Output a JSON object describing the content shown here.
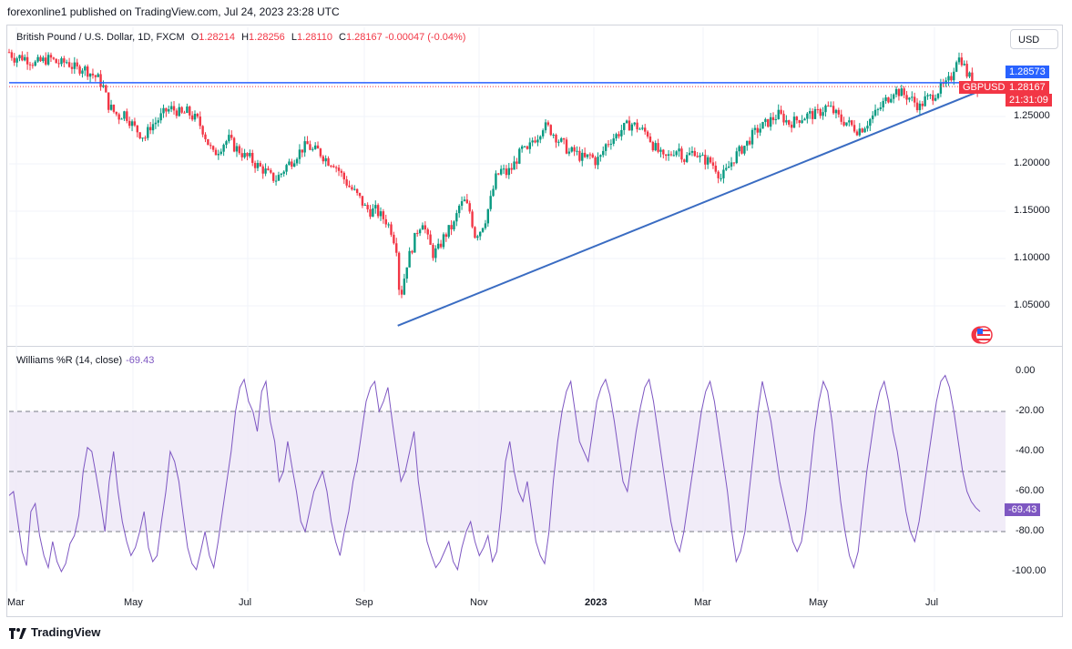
{
  "header": {
    "published": "forexonline1 published on TradingView.com, Jul 24, 2023 23:28 UTC"
  },
  "legend": {
    "symbol": "British Pound / U.S. Dollar, 1D, FXCM",
    "o_label": "O",
    "o": "1.28214",
    "h_label": "H",
    "h": "1.28256",
    "l_label": "L",
    "l": "1.28110",
    "c_label": "C",
    "c": "1.28167",
    "change": "-0.00047 (-0.04%)"
  },
  "currency_button": "USD",
  "price_tags": {
    "line_level": "1.28573",
    "symbol_tag": "GBPUSD",
    "last_price": "1.28167",
    "countdown": "21:31:09"
  },
  "indicator": {
    "name": "Williams %R (14, close)",
    "value": "-69.43",
    "value_tag": "-69.43"
  },
  "footer": {
    "brand": "TradingView"
  },
  "colors": {
    "up": "#089981",
    "down": "#f23645",
    "line": "#2962ff",
    "trend": "#3a6cc2",
    "wr": "#7e57c2",
    "band": "#ede7f6"
  },
  "icons": {
    "flag": "us-flag-icon",
    "logo": "tradingview-logo-icon"
  },
  "chart_data": [
    {
      "type": "candlestick",
      "title": "British Pound / U.S. Dollar, 1D, FXCM",
      "y_ticks": [
        "1.25000",
        "1.20000",
        "1.15000",
        "1.10000",
        "1.05000"
      ],
      "ylim": [
        1.015,
        1.315
      ],
      "x_ticks": [
        "Mar",
        "May",
        "Jul",
        "Sep",
        "Nov",
        "2023",
        "Mar",
        "May",
        "Jul"
      ],
      "close_path": [
        [
          0,
          1.318
        ],
        [
          4,
          1.312
        ],
        [
          8,
          1.313
        ],
        [
          12,
          1.312
        ],
        [
          16,
          1.309
        ],
        [
          20,
          1.306
        ],
        [
          24,
          1.308
        ],
        [
          28,
          1.31
        ],
        [
          32,
          1.311
        ],
        [
          36,
          1.307
        ],
        [
          40,
          1.306
        ],
        [
          44,
          1.308
        ],
        [
          48,
          1.303
        ],
        [
          52,
          1.3
        ],
        [
          56,
          1.302
        ],
        [
          60,
          1.298
        ],
        [
          64,
          1.294
        ],
        [
          68,
          1.29
        ],
        [
          72,
          1.281
        ],
        [
          76,
          1.262
        ],
        [
          80,
          1.255
        ],
        [
          84,
          1.25
        ],
        [
          88,
          1.254
        ],
        [
          92,
          1.246
        ],
        [
          96,
          1.238
        ],
        [
          100,
          1.232
        ],
        [
          104,
          1.228
        ],
        [
          108,
          1.24
        ],
        [
          112,
          1.244
        ],
        [
          116,
          1.25
        ],
        [
          120,
          1.256
        ],
        [
          124,
          1.258
        ],
        [
          128,
          1.256
        ],
        [
          132,
          1.252
        ],
        [
          136,
          1.255
        ],
        [
          140,
          1.25
        ],
        [
          144,
          1.246
        ],
        [
          148,
          1.236
        ],
        [
          152,
          1.222
        ],
        [
          156,
          1.21
        ],
        [
          160,
          1.215
        ],
        [
          164,
          1.222
        ],
        [
          168,
          1.226
        ],
        [
          172,
          1.218
        ],
        [
          176,
          1.214
        ],
        [
          180,
          1.208
        ],
        [
          184,
          1.206
        ],
        [
          188,
          1.2
        ],
        [
          192,
          1.196
        ],
        [
          196,
          1.192
        ],
        [
          200,
          1.186
        ],
        [
          204,
          1.184
        ],
        [
          208,
          1.19
        ],
        [
          212,
          1.198
        ],
        [
          216,
          1.203
        ],
        [
          220,
          1.21
        ],
        [
          224,
          1.216
        ],
        [
          228,
          1.22
        ],
        [
          232,
          1.214
        ],
        [
          236,
          1.214
        ],
        [
          240,
          1.208
        ],
        [
          244,
          1.203
        ],
        [
          248,
          1.201
        ],
        [
          252,
          1.193
        ],
        [
          256,
          1.184
        ],
        [
          260,
          1.176
        ],
        [
          264,
          1.17
        ],
        [
          268,
          1.163
        ],
        [
          272,
          1.154
        ],
        [
          276,
          1.15
        ],
        [
          280,
          1.151
        ],
        [
          284,
          1.145
        ],
        [
          288,
          1.14
        ],
        [
          292,
          1.13
        ],
        [
          296,
          1.112
        ],
        [
          298,
          1.07
        ],
        [
          300,
          1.065
        ],
        [
          302,
          1.08
        ],
        [
          304,
          1.095
        ],
        [
          308,
          1.112
        ],
        [
          312,
          1.13
        ],
        [
          316,
          1.14
        ],
        [
          320,
          1.12
        ],
        [
          324,
          1.105
        ],
        [
          328,
          1.11
        ],
        [
          332,
          1.122
        ],
        [
          336,
          1.13
        ],
        [
          340,
          1.136
        ],
        [
          344,
          1.155
        ],
        [
          348,
          1.16
        ],
        [
          352,
          1.15
        ],
        [
          356,
          1.125
        ],
        [
          360,
          1.13
        ],
        [
          364,
          1.142
        ],
        [
          368,
          1.162
        ],
        [
          372,
          1.185
        ],
        [
          376,
          1.193
        ],
        [
          380,
          1.19
        ],
        [
          384,
          1.195
        ],
        [
          388,
          1.205
        ],
        [
          392,
          1.215
        ],
        [
          396,
          1.212
        ],
        [
          400,
          1.225
        ],
        [
          404,
          1.23
        ],
        [
          408,
          1.24
        ],
        [
          412,
          1.238
        ],
        [
          416,
          1.232
        ],
        [
          420,
          1.225
        ],
        [
          424,
          1.22
        ],
        [
          428,
          1.212
        ],
        [
          432,
          1.213
        ],
        [
          436,
          1.208
        ],
        [
          440,
          1.205
        ],
        [
          444,
          1.209
        ],
        [
          448,
          1.203
        ],
        [
          452,
          1.207
        ],
        [
          456,
          1.22
        ],
        [
          460,
          1.226
        ],
        [
          464,
          1.23
        ],
        [
          468,
          1.236
        ],
        [
          472,
          1.24
        ],
        [
          476,
          1.242
        ],
        [
          480,
          1.239
        ],
        [
          484,
          1.235
        ],
        [
          488,
          1.232
        ],
        [
          492,
          1.22
        ],
        [
          496,
          1.213
        ],
        [
          500,
          1.205
        ],
        [
          504,
          1.208
        ],
        [
          508,
          1.214
        ],
        [
          512,
          1.216
        ],
        [
          516,
          1.205
        ],
        [
          520,
          1.21
        ],
        [
          524,
          1.214
        ],
        [
          528,
          1.206
        ],
        [
          532,
          1.204
        ],
        [
          536,
          1.202
        ],
        [
          540,
          1.196
        ],
        [
          544,
          1.185
        ],
        [
          548,
          1.192
        ],
        [
          552,
          1.202
        ],
        [
          556,
          1.21
        ],
        [
          560,
          1.216
        ],
        [
          564,
          1.222
        ],
        [
          568,
          1.23
        ],
        [
          572,
          1.236
        ],
        [
          576,
          1.24
        ],
        [
          580,
          1.244
        ],
        [
          584,
          1.248
        ],
        [
          588,
          1.252
        ],
        [
          592,
          1.248
        ],
        [
          596,
          1.243
        ],
        [
          600,
          1.245
        ],
        [
          604,
          1.248
        ],
        [
          608,
          1.25
        ],
        [
          612,
          1.252
        ],
        [
          616,
          1.252
        ],
        [
          620,
          1.255
        ],
        [
          624,
          1.26
        ],
        [
          628,
          1.258
        ],
        [
          632,
          1.252
        ],
        [
          636,
          1.246
        ],
        [
          640,
          1.244
        ],
        [
          644,
          1.24
        ],
        [
          648,
          1.236
        ],
        [
          652,
          1.238
        ],
        [
          656,
          1.244
        ],
        [
          660,
          1.25
        ],
        [
          664,
          1.256
        ],
        [
          668,
          1.264
        ],
        [
          672,
          1.27
        ],
        [
          676,
          1.278
        ],
        [
          680,
          1.276
        ],
        [
          684,
          1.273
        ],
        [
          688,
          1.27
        ],
        [
          692,
          1.265
        ],
        [
          696,
          1.26
        ],
        [
          700,
          1.268
        ],
        [
          704,
          1.27
        ],
        [
          708,
          1.275
        ],
        [
          712,
          1.28
        ],
        [
          716,
          1.283
        ],
        [
          720,
          1.292
        ],
        [
          724,
          1.312
        ],
        [
          728,
          1.31
        ],
        [
          732,
          1.295
        ],
        [
          736,
          1.288
        ],
        [
          740,
          1.282
        ]
      ],
      "lines": [
        {
          "name": "horizontal-level",
          "value": 1.2857
        },
        {
          "name": "trendline",
          "from": [
            297,
            1.029
          ],
          "to": [
            742,
            1.277
          ]
        }
      ],
      "last": 1.28167
    },
    {
      "type": "line",
      "title": "Williams %R (14, close)",
      "y_ticks": [
        "0.00",
        "-20.00",
        "-40.00",
        "-60.00",
        "-80.00",
        "-100.00"
      ],
      "ylim": [
        -103,
        3
      ],
      "bands": [
        -20,
        -50,
        -80
      ],
      "last": -69.43,
      "values": [
        -62,
        -60,
        -75,
        -90,
        -97,
        -70,
        -66,
        -82,
        -92,
        -98,
        -85,
        -95,
        -100,
        -96,
        -86,
        -82,
        -72,
        -50,
        -38,
        -40,
        -52,
        -65,
        -80,
        -55,
        -40,
        -60,
        -75,
        -85,
        -92,
        -88,
        -80,
        -70,
        -88,
        -95,
        -92,
        -75,
        -60,
        -40,
        -45,
        -55,
        -72,
        -88,
        -96,
        -99,
        -90,
        -80,
        -92,
        -98,
        -85,
        -70,
        -55,
        -40,
        -20,
        -8,
        -4,
        -15,
        -20,
        -30,
        -10,
        -5,
        -25,
        -35,
        -55,
        -50,
        -35,
        -48,
        -60,
        -75,
        -80,
        -70,
        -60,
        -55,
        -50,
        -60,
        -75,
        -85,
        -92,
        -80,
        -70,
        -55,
        -45,
        -30,
        -15,
        -8,
        -5,
        -20,
        -15,
        -8,
        -25,
        -40,
        -55,
        -50,
        -40,
        -30,
        -55,
        -70,
        -85,
        -92,
        -98,
        -95,
        -90,
        -85,
        -95,
        -99,
        -88,
        -80,
        -75,
        -85,
        -92,
        -88,
        -82,
        -95,
        -90,
        -70,
        -45,
        -35,
        -50,
        -60,
        -65,
        -55,
        -70,
        -85,
        -92,
        -96,
        -80,
        -55,
        -35,
        -20,
        -10,
        -5,
        -20,
        -35,
        -40,
        -45,
        -30,
        -15,
        -8,
        -4,
        -12,
        -25,
        -40,
        -55,
        -60,
        -45,
        -30,
        -18,
        -8,
        -4,
        -15,
        -30,
        -45,
        -60,
        -75,
        -85,
        -90,
        -80,
        -65,
        -50,
        -35,
        -20,
        -10,
        -5,
        -15,
        -30,
        -45,
        -60,
        -80,
        -95,
        -90,
        -80,
        -60,
        -40,
        -20,
        -5,
        -15,
        -25,
        -40,
        -55,
        -65,
        -75,
        -85,
        -90,
        -85,
        -70,
        -50,
        -30,
        -15,
        -5,
        -10,
        -25,
        -45,
        -65,
        -80,
        -92,
        -98,
        -90,
        -70,
        -50,
        -35,
        -20,
        -10,
        -5,
        -15,
        -30,
        -40,
        -55,
        -70,
        -80,
        -85,
        -75,
        -60,
        -45,
        -30,
        -15,
        -5,
        -2,
        -8,
        -20,
        -35,
        -50,
        -60,
        -65,
        -68,
        -70
      ]
    }
  ]
}
